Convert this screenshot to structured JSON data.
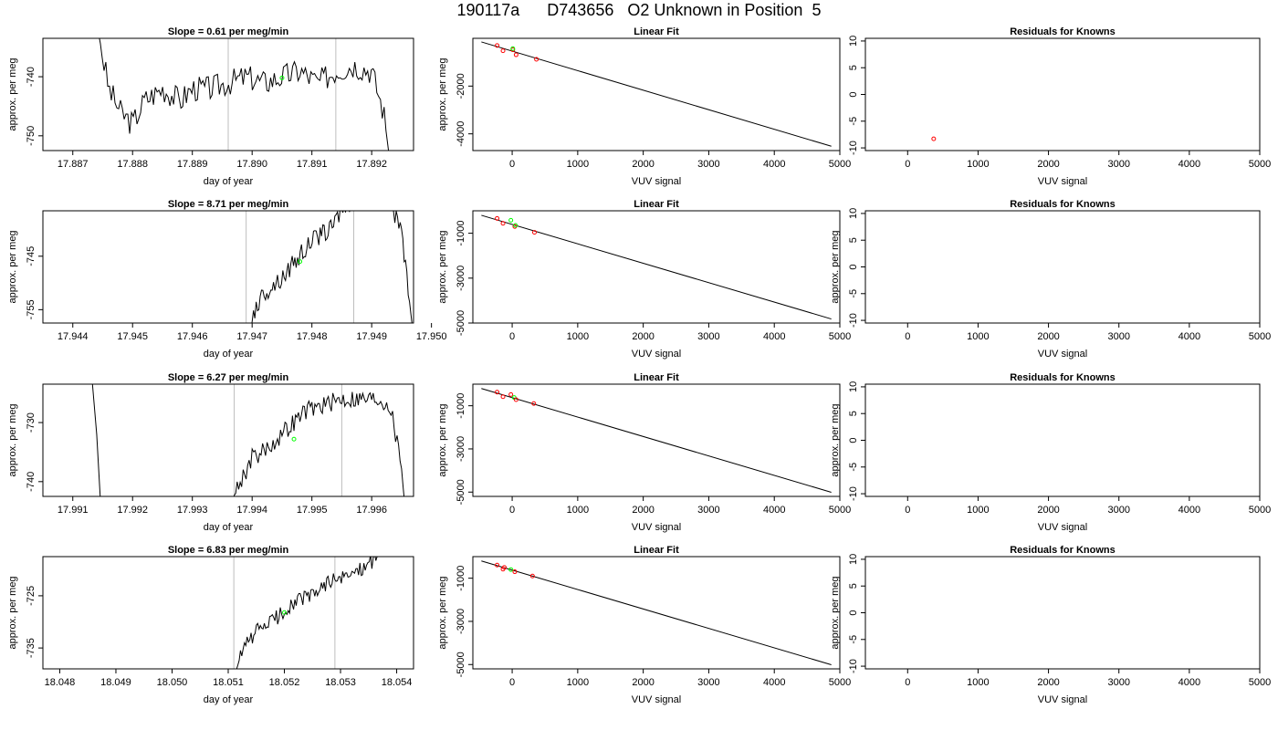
{
  "title": "190117a      D743656   O2 Unknown in Position  5",
  "colors": {
    "line": "#000000",
    "vline": "#bebebe",
    "standard_point": "#ff0000",
    "unknown_point": "#00ff00"
  },
  "chart_data": [
    {
      "type": "line",
      "title": "Slope =  0.61  per meg/min",
      "xlabel": "day of year",
      "ylabel": "approx. per meg",
      "xlim": [
        17.8865,
        17.8927
      ],
      "ylim": [
        -752.5,
        -733.5
      ],
      "xticks": [
        17.887,
        17.888,
        17.889,
        17.89,
        17.891,
        17.892
      ],
      "xtick_labels": [
        "17.887",
        "17.888",
        "17.889",
        "17.890",
        "17.891",
        "17.892"
      ],
      "yticks": [
        -740,
        -750
      ],
      "ytick_labels": [
        "-740",
        "-750"
      ],
      "vlines": [
        17.8896,
        17.8914
      ],
      "series": [
        {
          "anchors": [
            [
              17.8874,
              -731
            ],
            [
              17.8876,
              -742
            ],
            [
              17.8878,
              -746
            ],
            [
              17.888,
              -748
            ],
            [
              17.8882,
              -744
            ],
            [
              17.8885,
              -742
            ],
            [
              17.8888,
              -744
            ],
            [
              17.889,
              -742
            ],
            [
              17.8893,
              -742
            ],
            [
              17.8896,
              -741
            ],
            [
              17.8899,
              -740
            ],
            [
              17.8902,
              -741
            ],
            [
              17.8905,
              -740
            ],
            [
              17.8908,
              -739
            ],
            [
              17.8911,
              -741
            ],
            [
              17.8914,
              -739
            ],
            [
              17.8917,
              -738
            ],
            [
              17.892,
              -739
            ],
            [
              17.8922,
              -746
            ],
            [
              17.8923,
              -754
            ]
          ],
          "noise": 2.2,
          "points": 160
        }
      ],
      "points": [
        {
          "x": 17.8905,
          "y": -740.2,
          "color": "#00ff00"
        }
      ]
    },
    {
      "type": "scatter",
      "title": "Linear Fit",
      "xlabel": "VUV signal",
      "ylabel": "approx. per meg",
      "xlim": [
        -600,
        5000
      ],
      "ylim": [
        -4700,
        0
      ],
      "xticks": [
        0,
        1000,
        2000,
        3000,
        4000,
        5000
      ],
      "xtick_labels": [
        "0",
        "1000",
        "2000",
        "3000",
        "4000",
        "5000"
      ],
      "yticks": [
        -2000,
        -4000
      ],
      "ytick_labels": [
        "-2000",
        "-4000"
      ],
      "fit_line": [
        [
          -470,
          -150
        ],
        [
          4870,
          -4520
        ]
      ],
      "points": [
        {
          "x": -230,
          "y": -300,
          "color": "#ff0000"
        },
        {
          "x": -140,
          "y": -520,
          "color": "#ff0000"
        },
        {
          "x": 10,
          "y": -480,
          "color": "#ff0000"
        },
        {
          "x": 10,
          "y": -430,
          "color": "#00ff00"
        },
        {
          "x": 60,
          "y": -690,
          "color": "#ff0000"
        },
        {
          "x": 370,
          "y": -880,
          "color": "#ff0000"
        }
      ]
    },
    {
      "type": "scatter",
      "title": "Residuals for Knowns",
      "xlabel": "VUV signal",
      "ylabel": "",
      "xlim": [
        -600,
        5000
      ],
      "ylim": [
        -10.5,
        10.5
      ],
      "xticks": [
        0,
        1000,
        2000,
        3000,
        4000,
        5000
      ],
      "xtick_labels": [
        "0",
        "1000",
        "2000",
        "3000",
        "4000",
        "5000"
      ],
      "yticks": [
        10,
        5,
        0,
        -5,
        -10
      ],
      "ytick_labels": [
        "10",
        "5",
        "0",
        "-5",
        "-10"
      ],
      "points": [
        {
          "x": 370,
          "y": -8.3,
          "color": "#ff0000"
        }
      ]
    },
    {
      "type": "line",
      "title": "Slope =  8.71  per meg/min",
      "xlabel": "day of year",
      "ylabel": "approx. per meg",
      "xlim": [
        17.9435,
        17.9497
      ],
      "ylim": [
        -757.5,
        -736.5
      ],
      "xticks": [
        17.944,
        17.945,
        17.946,
        17.947,
        17.948,
        17.949,
        17.95
      ],
      "xtick_labels": [
        "17.944",
        "17.945",
        "17.946",
        "17.947",
        "17.948",
        "17.949",
        "17.950"
      ],
      "yticks": [
        -745,
        -755
      ],
      "ytick_labels": [
        "-745",
        "-755"
      ],
      "vlines": [
        17.9469,
        17.9487
      ],
      "series": [
        {
          "anchors": [
            [
              17.9468,
              -770
            ],
            [
              17.947,
              -756
            ],
            [
              17.9472,
              -752
            ],
            [
              17.9475,
              -749
            ],
            [
              17.9478,
              -745
            ],
            [
              17.948,
              -742
            ],
            [
              17.9483,
              -740
            ],
            [
              17.9485,
              -736
            ],
            [
              17.9488,
              -734
            ],
            [
              17.949,
              -734
            ],
            [
              17.9493,
              -734
            ],
            [
              17.9495,
              -741
            ],
            [
              17.9497,
              -760
            ]
          ],
          "noise": 1.8,
          "points": 130
        }
      ],
      "points": [
        {
          "x": 17.9478,
          "y": -746,
          "color": "#00ff00"
        }
      ]
    },
    {
      "type": "scatter",
      "title": "Linear Fit",
      "xlabel": "VUV signal",
      "ylabel": "approx. per meg",
      "xlim": [
        -600,
        5000
      ],
      "ylim": [
        -5000,
        0
      ],
      "xticks": [
        0,
        1000,
        2000,
        3000,
        4000,
        5000
      ],
      "xtick_labels": [
        "0",
        "1000",
        "2000",
        "3000",
        "4000",
        "5000"
      ],
      "yticks": [
        -1000,
        -3000,
        -5000
      ],
      "ytick_labels": [
        "-1000",
        "-3000",
        "-5000"
      ],
      "fit_line": [
        [
          -470,
          -200
        ],
        [
          4870,
          -4820
        ]
      ],
      "points": [
        {
          "x": -230,
          "y": -340,
          "color": "#ff0000"
        },
        {
          "x": -140,
          "y": -560,
          "color": "#ff0000"
        },
        {
          "x": -20,
          "y": -420,
          "color": "#00ff00"
        },
        {
          "x": 40,
          "y": -700,
          "color": "#ff0000"
        },
        {
          "x": 50,
          "y": -650,
          "color": "#00ff00"
        },
        {
          "x": 340,
          "y": -960,
          "color": "#ff0000"
        }
      ]
    },
    {
      "type": "scatter",
      "title": "Residuals for Knowns",
      "xlabel": "VUV signal",
      "ylabel": "approx. per meg",
      "xlim": [
        -600,
        5000
      ],
      "ylim": [
        -10.5,
        10.5
      ],
      "xticks": [
        0,
        1000,
        2000,
        3000,
        4000,
        5000
      ],
      "xtick_labels": [
        "0",
        "1000",
        "2000",
        "3000",
        "4000",
        "5000"
      ],
      "yticks": [
        10,
        5,
        0,
        -5,
        -10
      ],
      "ytick_labels": [
        "10",
        "5",
        "0",
        "-5",
        "-10"
      ],
      "points": []
    },
    {
      "type": "line",
      "title": "Slope =  6.27  per meg/min",
      "xlabel": "day of year",
      "ylabel": "approx. per meg",
      "xlim": [
        17.9905,
        17.9967
      ],
      "ylim": [
        -742.5,
        -723.5
      ],
      "xticks": [
        17.991,
        17.992,
        17.993,
        17.994,
        17.995,
        17.996
      ],
      "xtick_labels": [
        "17.991",
        "17.992",
        "17.993",
        "17.994",
        "17.995",
        "17.996"
      ],
      "yticks": [
        -730,
        -740
      ],
      "ytick_labels": [
        "-730",
        "-740"
      ],
      "vlines": [
        17.9937,
        17.9955
      ],
      "series": [
        {
          "anchors": [
            [
              17.9913,
              -720
            ],
            [
              17.9914,
              -732
            ],
            [
              17.9915,
              -750
            ]
          ],
          "noise": 0,
          "points": 6
        },
        {
          "anchors": [
            [
              17.9936,
              -745
            ],
            [
              17.9938,
              -740
            ],
            [
              17.994,
              -736
            ],
            [
              17.9943,
              -734
            ],
            [
              17.9946,
              -731
            ],
            [
              17.9949,
              -728
            ],
            [
              17.9952,
              -727
            ],
            [
              17.9955,
              -726
            ],
            [
              17.9958,
              -726
            ],
            [
              17.9961,
              -726
            ],
            [
              17.9963,
              -727
            ],
            [
              17.9965,
              -737
            ],
            [
              17.9966,
              -750
            ]
          ],
          "noise": 1.6,
          "points": 120
        }
      ],
      "points": [
        {
          "x": 17.9947,
          "y": -732.8,
          "color": "#00ff00"
        }
      ]
    },
    {
      "type": "scatter",
      "title": "Linear Fit",
      "xlabel": "VUV signal",
      "ylabel": "approx. per meg",
      "xlim": [
        -600,
        5000
      ],
      "ylim": [
        -5200,
        0
      ],
      "xticks": [
        0,
        1000,
        2000,
        3000,
        4000,
        5000
      ],
      "xtick_labels": [
        "0",
        "1000",
        "2000",
        "3000",
        "4000",
        "5000"
      ],
      "yticks": [
        -1000,
        -3000,
        -5000
      ],
      "ytick_labels": [
        "-1000",
        "-3000",
        "-5000"
      ],
      "fit_line": [
        [
          -470,
          -200
        ],
        [
          4870,
          -5010
        ]
      ],
      "points": [
        {
          "x": -230,
          "y": -370,
          "color": "#ff0000"
        },
        {
          "x": -140,
          "y": -580,
          "color": "#ff0000"
        },
        {
          "x": -20,
          "y": -480,
          "color": "#ff0000"
        },
        {
          "x": 30,
          "y": -620,
          "color": "#00ff00"
        },
        {
          "x": 60,
          "y": -720,
          "color": "#ff0000"
        },
        {
          "x": 330,
          "y": -900,
          "color": "#ff0000"
        }
      ]
    },
    {
      "type": "scatter",
      "title": "Residuals for Knowns",
      "xlabel": "VUV signal",
      "ylabel": "approx. per meg",
      "xlim": [
        -600,
        5000
      ],
      "ylim": [
        -10.5,
        10.5
      ],
      "xticks": [
        0,
        1000,
        2000,
        3000,
        4000,
        5000
      ],
      "xtick_labels": [
        "0",
        "1000",
        "2000",
        "3000",
        "4000",
        "5000"
      ],
      "yticks": [
        10,
        5,
        0,
        -5,
        -10
      ],
      "ytick_labels": [
        "10",
        "5",
        "0",
        "-5",
        "-10"
      ],
      "points": []
    },
    {
      "type": "line",
      "title": "Slope =  6.83  per meg/min",
      "xlabel": "day of year",
      "ylabel": "approx. per meg",
      "xlim": [
        18.0477,
        18.0543
      ],
      "ylim": [
        -739,
        -717.5
      ],
      "xticks": [
        18.048,
        18.049,
        18.05,
        18.051,
        18.052,
        18.053,
        18.054
      ],
      "xtick_labels": [
        "18.048",
        "18.049",
        "18.050",
        "18.051",
        "18.052",
        "18.053",
        "18.054"
      ],
      "yticks": [
        -725,
        -735
      ],
      "ytick_labels": [
        "-725",
        "-735"
      ],
      "vlines": [
        18.0511,
        18.0529
      ],
      "series": [
        {
          "anchors": [
            [
              18.0511,
              -741
            ],
            [
              18.0512,
              -737
            ],
            [
              18.0514,
              -733
            ],
            [
              18.0516,
              -731
            ],
            [
              18.0519,
              -729
            ],
            [
              18.0522,
              -726
            ],
            [
              18.0525,
              -725
            ],
            [
              18.0528,
              -722
            ],
            [
              18.053,
              -722
            ],
            [
              18.0533,
              -720
            ],
            [
              18.0535,
              -719
            ],
            [
              18.0537,
              -717
            ]
          ],
          "noise": 1.5,
          "points": 110
        }
      ],
      "points": [
        {
          "x": 18.052,
          "y": -728.2,
          "color": "#00ff00"
        }
      ]
    },
    {
      "type": "scatter",
      "title": "Linear Fit",
      "xlabel": "VUV signal",
      "ylabel": "approx. per meg",
      "xlim": [
        -600,
        5000
      ],
      "ylim": [
        -5200,
        0
      ],
      "xticks": [
        0,
        1000,
        2000,
        3000,
        4000,
        5000
      ],
      "xtick_labels": [
        "0",
        "1000",
        "2000",
        "3000",
        "4000",
        "5000"
      ],
      "yticks": [
        -1000,
        -3000,
        -5000
      ],
      "ytick_labels": [
        "-1000",
        "-3000",
        "-5000"
      ],
      "fit_line": [
        [
          -470,
          -200
        ],
        [
          4870,
          -5010
        ]
      ],
      "points": [
        {
          "x": -230,
          "y": -390,
          "color": "#ff0000"
        },
        {
          "x": -140,
          "y": -580,
          "color": "#ff0000"
        },
        {
          "x": -120,
          "y": -500,
          "color": "#ff0000"
        },
        {
          "x": -20,
          "y": -600,
          "color": "#00ff00"
        },
        {
          "x": 40,
          "y": -700,
          "color": "#ff0000"
        },
        {
          "x": 310,
          "y": -900,
          "color": "#ff0000"
        }
      ]
    },
    {
      "type": "scatter",
      "title": "Residuals for Knowns",
      "xlabel": "VUV signal",
      "ylabel": "approx. per meg",
      "xlim": [
        -600,
        5000
      ],
      "ylim": [
        -10.5,
        10.5
      ],
      "xticks": [
        0,
        1000,
        2000,
        3000,
        4000,
        5000
      ],
      "xtick_labels": [
        "0",
        "1000",
        "2000",
        "3000",
        "4000",
        "5000"
      ],
      "yticks": [
        10,
        5,
        0,
        -5,
        -10
      ],
      "ytick_labels": [
        "10",
        "5",
        "0",
        "-5",
        "-10"
      ],
      "points": []
    }
  ]
}
